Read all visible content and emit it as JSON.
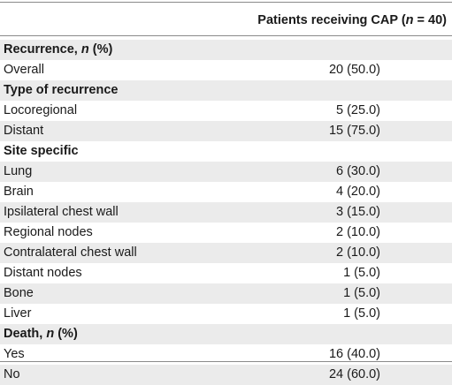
{
  "table": {
    "header": {
      "column_prefix": "Patients receiving CAP (",
      "n_symbol": "n",
      "column_suffix": " = 40)"
    },
    "sections": [
      {
        "title": "Recurrence, ",
        "title_italic": "n",
        "title_suffix": " (%)",
        "rows": [
          {
            "label": "Overall",
            "value": "20 (50.0)"
          }
        ]
      },
      {
        "title": "Type of recurrence",
        "title_italic": "",
        "title_suffix": "",
        "rows": [
          {
            "label": "Locoregional",
            "value": "5 (25.0)"
          },
          {
            "label": "Distant",
            "value": "15 (75.0)"
          }
        ]
      },
      {
        "title": "Site specific",
        "title_italic": "",
        "title_suffix": "",
        "rows": [
          {
            "label": "Lung",
            "value": "6 (30.0)"
          },
          {
            "label": "Brain",
            "value": "4 (20.0)"
          },
          {
            "label": "Ipsilateral chest wall",
            "value": "3 (15.0)"
          },
          {
            "label": "Regional nodes",
            "value": "2 (10.0)"
          },
          {
            "label": "Contralateral chest wall",
            "value": "2 (10.0)"
          },
          {
            "label": "Distant nodes",
            "value": "1 (5.0)"
          },
          {
            "label": "Bone",
            "value": "1 (5.0)"
          },
          {
            "label": "Liver",
            "value": "1 (5.0)"
          }
        ]
      },
      {
        "title": "Death, ",
        "title_italic": "n",
        "title_suffix": " (%)",
        "rows": [
          {
            "label": "Yes",
            "value": "16 (40.0)"
          },
          {
            "label": "No",
            "value": "24 (60.0)"
          }
        ]
      }
    ]
  }
}
